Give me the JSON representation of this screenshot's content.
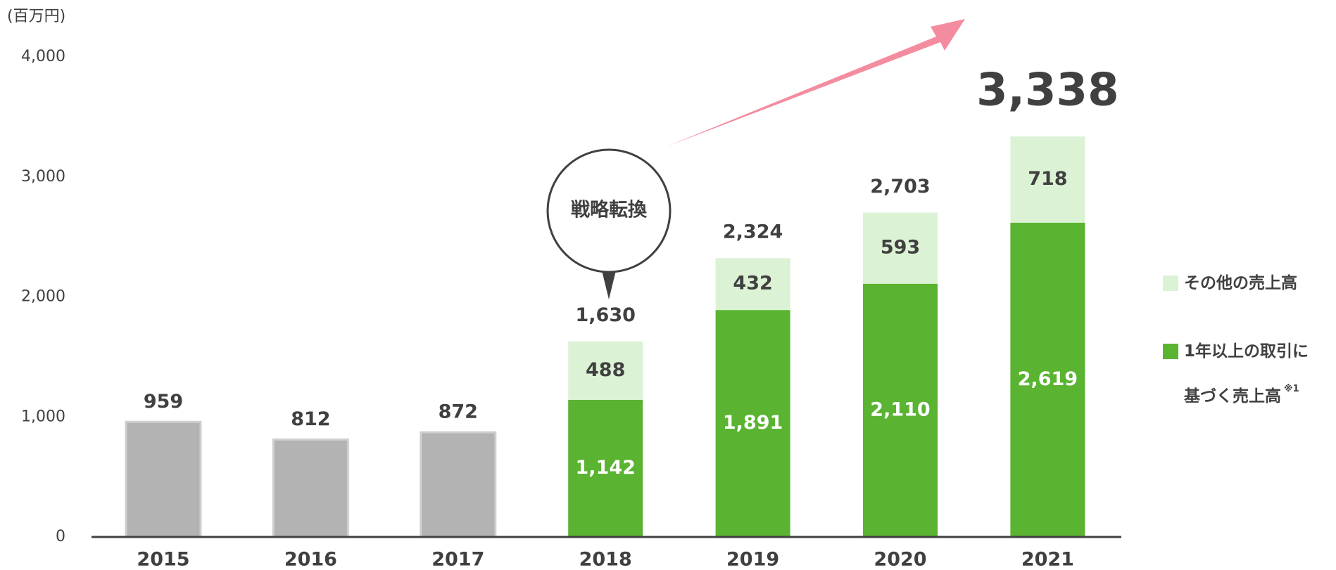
{
  "chart_data": {
    "type": "stacked_bar",
    "unit_label": "(百万円)",
    "annotation": "戦略転換",
    "categories": [
      "2015",
      "2016",
      "2017",
      "2018",
      "2019",
      "2020",
      "2021"
    ],
    "series": [
      {
        "color": "#b3b3b3",
        "values": [
          959,
          812,
          872,
          null,
          null,
          null,
          null
        ]
      },
      {
        "name": "1年以上の取引に基づく売上高",
        "footnote_mark": "※1",
        "color": "#5ab431",
        "values": [
          null,
          null,
          null,
          1142,
          1891,
          2110,
          2619
        ],
        "value_labels": [
          null,
          null,
          null,
          "1,142",
          "1,891",
          "2,110",
          "2,619"
        ]
      },
      {
        "name": "その他の売上高",
        "color": "#dcf2d4",
        "values": [
          null,
          null,
          null,
          488,
          432,
          593,
          718
        ]
      }
    ],
    "totals": {
      "values": [
        null,
        null,
        null,
        1630,
        2324,
        2703,
        3338
      ],
      "value_labels": [
        null,
        null,
        null,
        "1,630",
        "2,324",
        "2,703",
        "3,338"
      ]
    },
    "ylim": [
      0,
      4000
    ],
    "yticks": [
      0,
      {
        "value": 1000,
        "label": "1,000"
      },
      {
        "value": 2000,
        "label": "2,000"
      },
      {
        "value": 3000,
        "label": "3,000"
      },
      {
        "value": 4000,
        "label": "4,000"
      }
    ],
    "grid": false
  }
}
